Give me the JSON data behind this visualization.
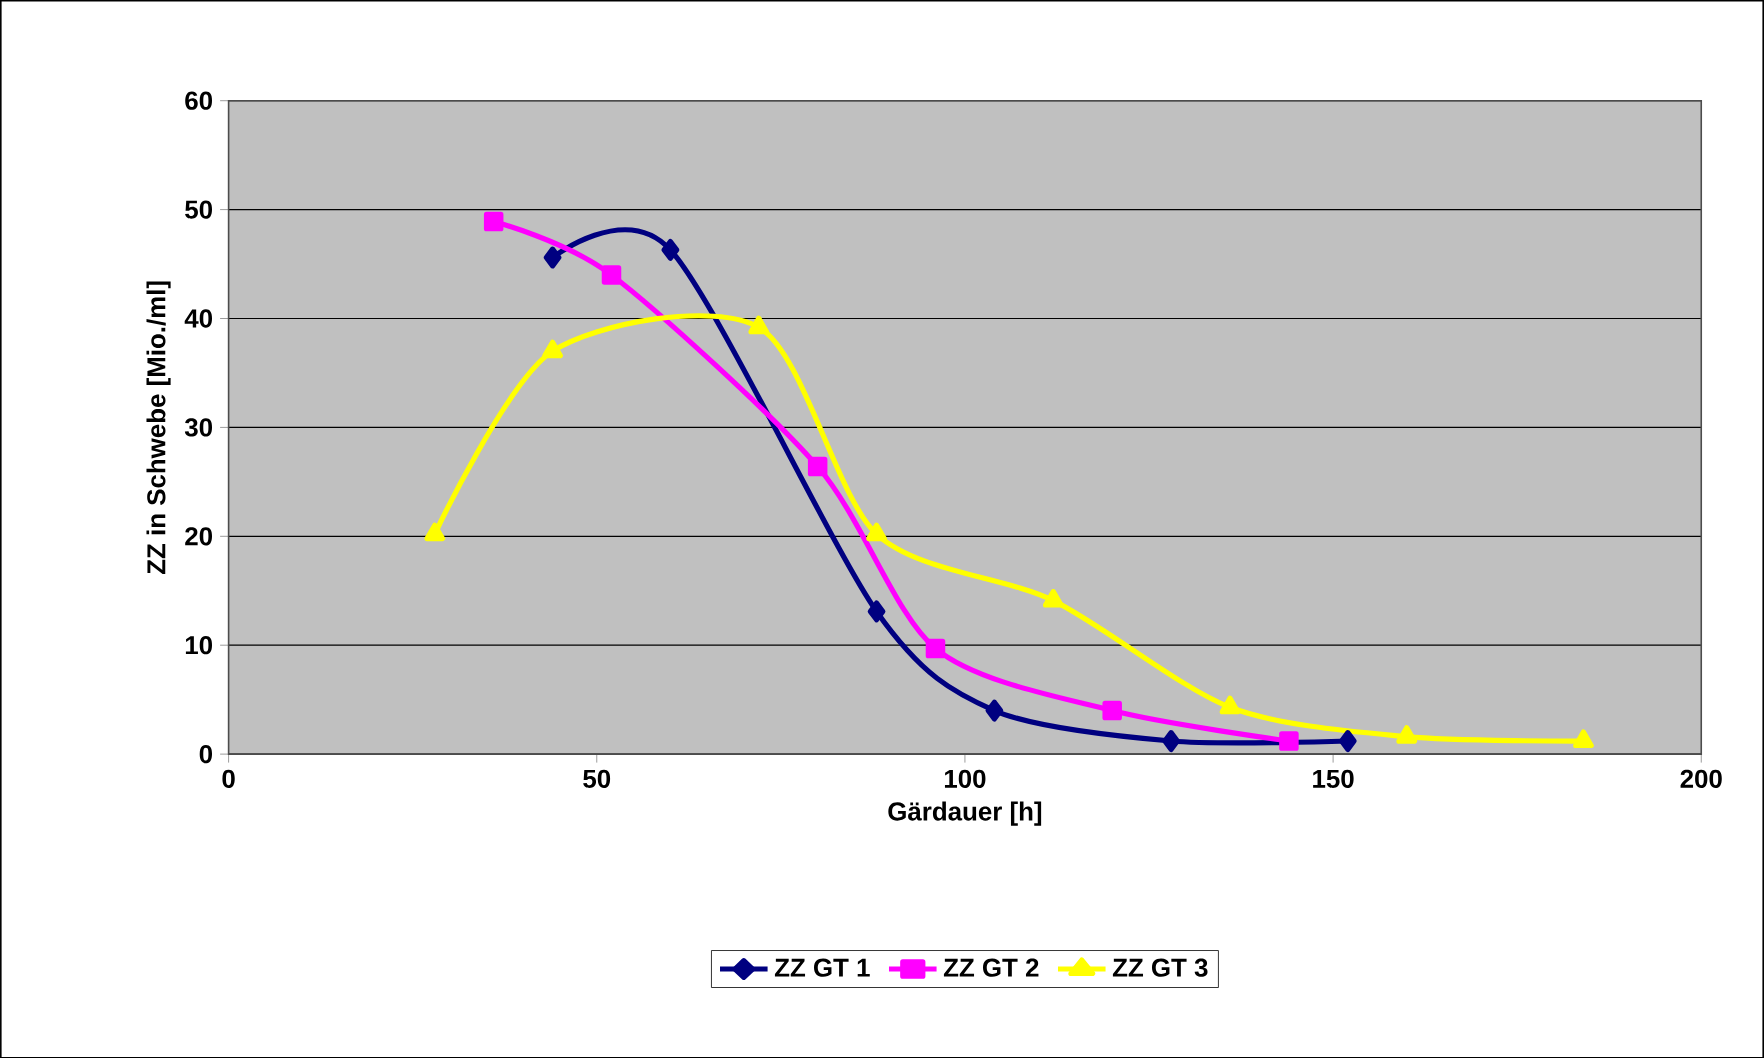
{
  "chart_data": {
    "type": "line",
    "xlabel": "Gärdauer [h]",
    "ylabel": "ZZ in Schwebe [Mio./ml]",
    "xlim": [
      0,
      200
    ],
    "xticks": [
      0,
      50,
      100,
      150,
      200
    ],
    "ylim": [
      0,
      60
    ],
    "yticks": [
      0,
      10,
      20,
      30,
      40,
      50,
      60
    ],
    "grid": "y",
    "legend": "bottom",
    "series": [
      {
        "name": "ZZ GT 1",
        "color": "#000080",
        "marker": "diamond",
        "x": [
          44,
          60,
          88,
          104,
          128,
          152
        ],
        "values": [
          45.6,
          46.3,
          13.1,
          4.0,
          1.2,
          1.2
        ]
      },
      {
        "name": "ZZ GT 2",
        "color": "#ff00ff",
        "marker": "square",
        "x": [
          36,
          52,
          80,
          96,
          120,
          144
        ],
        "values": [
          48.9,
          44.0,
          26.4,
          9.7,
          4.0,
          1.2
        ]
      },
      {
        "name": "ZZ GT 3",
        "color": "#ffff00",
        "marker": "triangle",
        "x": [
          28,
          44,
          72,
          88,
          112,
          136,
          160,
          184
        ],
        "values": [
          20.2,
          37.0,
          39.2,
          20.2,
          14.1,
          4.3,
          1.6,
          1.2
        ]
      }
    ]
  }
}
